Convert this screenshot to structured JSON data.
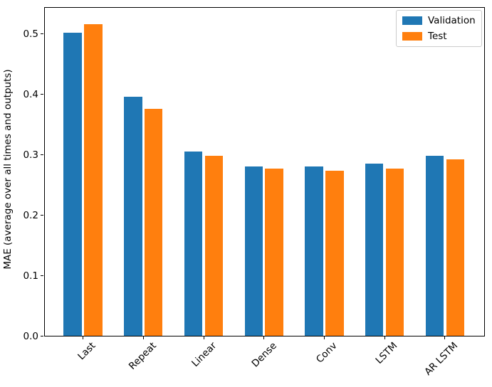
{
  "chart_data": {
    "type": "bar",
    "title": "",
    "xlabel": "",
    "ylabel": "MAE (average over all times and outputs)",
    "categories": [
      "Last",
      "Repeat",
      "Linear",
      "Dense",
      "Conv",
      "LSTM",
      "AR LSTM"
    ],
    "series": [
      {
        "name": "Validation",
        "color": "#1f77b4",
        "values": [
          0.502,
          0.396,
          0.306,
          0.281,
          0.281,
          0.286,
          0.298
        ]
      },
      {
        "name": "Test",
        "color": "#ff7f0e",
        "values": [
          0.516,
          0.376,
          0.299,
          0.277,
          0.274,
          0.277,
          0.292
        ]
      }
    ],
    "ylim": [
      0,
      0.5443
    ],
    "yticks": [
      0.0,
      0.1,
      0.2,
      0.3,
      0.4,
      0.5
    ],
    "ytick_labels": [
      "0.0",
      "0.1",
      "0.2",
      "0.3",
      "0.4",
      "0.5"
    ],
    "x_tick_rotation": 45,
    "grid": false,
    "bar_width_units": 0.3,
    "bar_offset_units": 0.17,
    "legend": {
      "position": "upper right",
      "entries": [
        "Validation",
        "Test"
      ]
    },
    "colors": {
      "spine": "#000000",
      "legend_border": "#cccccc",
      "background": "#ffffff"
    }
  }
}
